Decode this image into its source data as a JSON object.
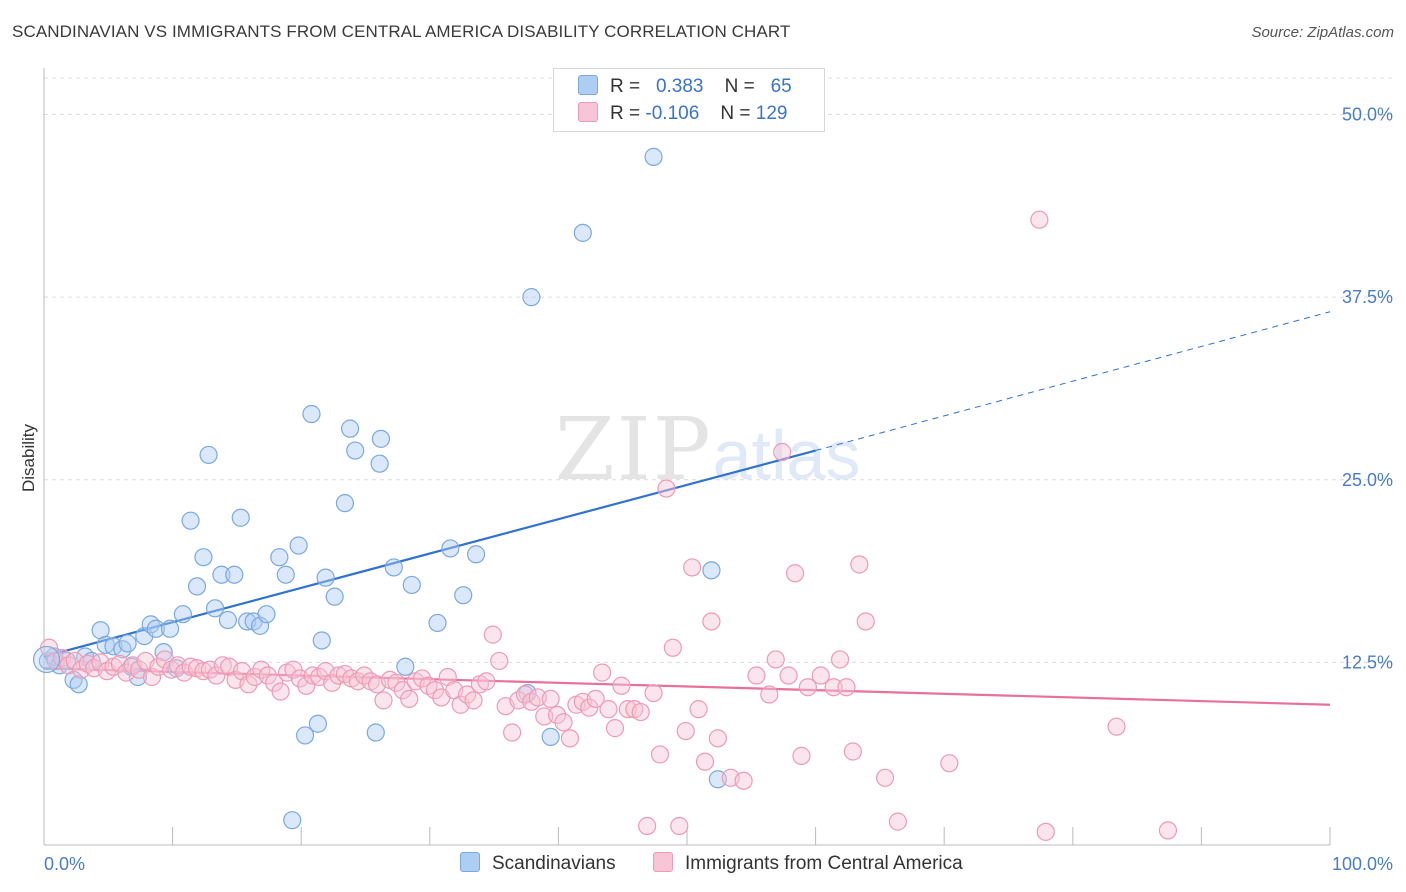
{
  "title": "SCANDINAVIAN VS IMMIGRANTS FROM CENTRAL AMERICA DISABILITY CORRELATION CHART",
  "source": "Source: ZipAtlas.com",
  "watermark": {
    "zip": "ZIP",
    "atlas": "atlas"
  },
  "legend": {
    "rows": [
      {
        "r_label": "R =",
        "r_value": "0.383",
        "n_label": "N =",
        "n_value": "65",
        "color": "#aecdf3",
        "border": "#7aa9e0"
      },
      {
        "r_label": "R =",
        "r_value": "-0.106",
        "n_label": "N =",
        "n_value": "129",
        "color": "#f7c5d5",
        "border": "#ee9ab5"
      }
    ]
  },
  "bottom_legend": [
    {
      "label": "Scandinavians",
      "color": "#aecdf3",
      "border": "#7aa9e0"
    },
    {
      "label": "Immigrants from Central America",
      "color": "#f7c5d5",
      "border": "#ee9ab5"
    }
  ],
  "chart_data": {
    "type": "scatter",
    "title": "SCANDINAVIAN VS IMMIGRANTS FROM CENTRAL AMERICA DISABILITY CORRELATION CHART",
    "xlabel": "",
    "ylabel": "Disability",
    "xlim": [
      0,
      100
    ],
    "ylim": [
      0,
      52.5
    ],
    "x_tick_labels": [
      "0.0%",
      "100.0%"
    ],
    "y_ticks": [
      12.5,
      25.0,
      37.5,
      50.0
    ],
    "y_tick_labels": [
      "12.5%",
      "25.0%",
      "37.5%",
      "50.0%"
    ],
    "grid": true,
    "series": [
      {
        "name": "Scandinavians",
        "color": "#7aa9e0",
        "fill": "rgba(174,205,243,0.45)",
        "trend": {
          "x0": 0,
          "y0": 12.9,
          "x1": 60,
          "y1": 27.0,
          "dash_to_x": 100,
          "dash_to_y": 36.5,
          "color": "#2f72d2"
        },
        "points": [
          [
            0.3,
            12.6
          ],
          [
            0.8,
            12.9
          ],
          [
            1.2,
            12.3
          ],
          [
            1.8,
            12.6
          ],
          [
            2.3,
            11.3
          ],
          [
            2.7,
            11.0
          ],
          [
            3.2,
            12.9
          ],
          [
            3.7,
            12.6
          ],
          [
            4.4,
            14.7
          ],
          [
            4.8,
            13.7
          ],
          [
            5.4,
            13.6
          ],
          [
            6.1,
            13.4
          ],
          [
            6.5,
            13.8
          ],
          [
            6.8,
            12.2
          ],
          [
            7.3,
            11.5
          ],
          [
            7.8,
            14.3
          ],
          [
            8.3,
            15.1
          ],
          [
            8.7,
            14.8
          ],
          [
            9.3,
            13.2
          ],
          [
            9.8,
            14.8
          ],
          [
            10.3,
            12.1
          ],
          [
            10.8,
            15.8
          ],
          [
            11.4,
            22.2
          ],
          [
            11.9,
            17.7
          ],
          [
            12.4,
            19.7
          ],
          [
            12.8,
            26.7
          ],
          [
            13.3,
            16.2
          ],
          [
            13.8,
            18.5
          ],
          [
            14.3,
            15.4
          ],
          [
            14.8,
            18.5
          ],
          [
            15.3,
            22.4
          ],
          [
            15.8,
            15.3
          ],
          [
            16.3,
            15.3
          ],
          [
            16.8,
            15.0
          ],
          [
            17.3,
            15.8
          ],
          [
            18.3,
            19.7
          ],
          [
            18.8,
            18.5
          ],
          [
            19.3,
            1.7
          ],
          [
            19.8,
            20.5
          ],
          [
            20.3,
            7.5
          ],
          [
            20.8,
            29.5
          ],
          [
            21.3,
            8.3
          ],
          [
            21.6,
            14.0
          ],
          [
            21.9,
            18.3
          ],
          [
            22.6,
            17.0
          ],
          [
            23.4,
            23.4
          ],
          [
            23.8,
            28.5
          ],
          [
            24.2,
            27.0
          ],
          [
            26.2,
            27.8
          ],
          [
            25.8,
            7.7
          ],
          [
            26.1,
            26.1
          ],
          [
            27.2,
            19.0
          ],
          [
            28.1,
            12.2
          ],
          [
            28.6,
            17.8
          ],
          [
            30.6,
            15.2
          ],
          [
            31.6,
            20.3
          ],
          [
            32.6,
            17.1
          ],
          [
            33.6,
            19.9
          ],
          [
            37.6,
            10.4
          ],
          [
            37.9,
            37.5
          ],
          [
            39.4,
            7.4
          ],
          [
            41.9,
            41.9
          ],
          [
            47.4,
            47.1
          ],
          [
            51.9,
            18.8
          ],
          [
            52.4,
            4.5
          ]
        ]
      },
      {
        "name": "Immigrants from Central America",
        "color": "#ee9ab5",
        "fill": "rgba(247,197,213,0.45)",
        "trend": {
          "x0": 0,
          "y0": 12.1,
          "x1": 100,
          "y1": 9.6,
          "color": "#e8709b"
        },
        "points": [
          [
            0.4,
            13.5
          ],
          [
            0.9,
            12.6
          ],
          [
            1.4,
            12.8
          ],
          [
            1.9,
            12.3
          ],
          [
            2.4,
            12.6
          ],
          [
            2.9,
            12.0
          ],
          [
            3.4,
            12.4
          ],
          [
            3.9,
            12.1
          ],
          [
            4.4,
            12.5
          ],
          [
            4.9,
            11.9
          ],
          [
            5.4,
            12.2
          ],
          [
            5.9,
            12.4
          ],
          [
            6.4,
            11.8
          ],
          [
            6.9,
            12.3
          ],
          [
            7.4,
            12.0
          ],
          [
            7.9,
            12.6
          ],
          [
            8.4,
            11.5
          ],
          [
            8.9,
            12.2
          ],
          [
            9.4,
            12.7
          ],
          [
            9.9,
            12.0
          ],
          [
            10.4,
            12.3
          ],
          [
            10.9,
            11.8
          ],
          [
            11.4,
            12.2
          ],
          [
            11.9,
            12.1
          ],
          [
            12.4,
            11.9
          ],
          [
            12.9,
            12.0
          ],
          [
            13.4,
            11.6
          ],
          [
            13.9,
            12.3
          ],
          [
            14.4,
            12.2
          ],
          [
            14.9,
            11.3
          ],
          [
            15.4,
            11.9
          ],
          [
            15.9,
            11.0
          ],
          [
            16.4,
            11.5
          ],
          [
            16.9,
            12.0
          ],
          [
            17.4,
            11.6
          ],
          [
            17.9,
            11.1
          ],
          [
            18.4,
            10.5
          ],
          [
            18.9,
            11.8
          ],
          [
            19.4,
            12.0
          ],
          [
            19.9,
            11.4
          ],
          [
            20.4,
            10.9
          ],
          [
            20.9,
            11.6
          ],
          [
            21.4,
            11.5
          ],
          [
            21.9,
            11.9
          ],
          [
            22.4,
            11.1
          ],
          [
            22.9,
            11.6
          ],
          [
            23.4,
            11.7
          ],
          [
            23.9,
            11.4
          ],
          [
            24.4,
            11.2
          ],
          [
            24.9,
            11.6
          ],
          [
            25.4,
            11.2
          ],
          [
            25.9,
            11.0
          ],
          [
            26.4,
            9.9
          ],
          [
            26.9,
            11.3
          ],
          [
            27.4,
            11.1
          ],
          [
            27.9,
            10.6
          ],
          [
            28.4,
            10.0
          ],
          [
            28.9,
            11.2
          ],
          [
            29.4,
            11.4
          ],
          [
            29.9,
            10.9
          ],
          [
            30.4,
            10.6
          ],
          [
            30.9,
            10.1
          ],
          [
            31.4,
            11.5
          ],
          [
            31.9,
            10.6
          ],
          [
            32.4,
            9.6
          ],
          [
            32.9,
            10.3
          ],
          [
            33.4,
            9.9
          ],
          [
            33.9,
            11.0
          ],
          [
            34.4,
            11.2
          ],
          [
            34.9,
            14.4
          ],
          [
            35.4,
            12.6
          ],
          [
            35.9,
            9.5
          ],
          [
            36.4,
            7.7
          ],
          [
            36.9,
            9.9
          ],
          [
            37.4,
            10.3
          ],
          [
            37.9,
            9.8
          ],
          [
            38.4,
            10.1
          ],
          [
            38.9,
            8.8
          ],
          [
            39.4,
            10.0
          ],
          [
            39.9,
            8.9
          ],
          [
            40.4,
            8.4
          ],
          [
            40.9,
            7.3
          ],
          [
            41.4,
            9.6
          ],
          [
            41.9,
            9.8
          ],
          [
            42.4,
            9.4
          ],
          [
            42.9,
            10.0
          ],
          [
            43.4,
            11.8
          ],
          [
            43.9,
            9.3
          ],
          [
            44.4,
            8.0
          ],
          [
            44.9,
            10.9
          ],
          [
            45.4,
            9.3
          ],
          [
            45.9,
            9.3
          ],
          [
            46.4,
            9.1
          ],
          [
            46.9,
            1.3
          ],
          [
            47.4,
            10.4
          ],
          [
            47.9,
            6.2
          ],
          [
            48.4,
            24.4
          ],
          [
            48.9,
            13.5
          ],
          [
            49.4,
            1.3
          ],
          [
            49.9,
            7.8
          ],
          [
            50.4,
            19.0
          ],
          [
            50.9,
            9.3
          ],
          [
            51.4,
            5.7
          ],
          [
            51.9,
            15.3
          ],
          [
            52.4,
            7.3
          ],
          [
            53.4,
            4.6
          ],
          [
            54.4,
            4.4
          ],
          [
            55.4,
            11.6
          ],
          [
            56.4,
            10.3
          ],
          [
            56.9,
            12.7
          ],
          [
            57.4,
            26.9
          ],
          [
            57.9,
            11.6
          ],
          [
            58.4,
            18.6
          ],
          [
            58.9,
            6.1
          ],
          [
            59.4,
            10.8
          ],
          [
            60.4,
            11.6
          ],
          [
            61.4,
            10.8
          ],
          [
            61.9,
            12.7
          ],
          [
            62.4,
            10.8
          ],
          [
            62.9,
            6.4
          ],
          [
            63.4,
            19.2
          ],
          [
            63.9,
            15.3
          ],
          [
            65.4,
            4.6
          ],
          [
            66.4,
            1.6
          ],
          [
            70.4,
            5.6
          ],
          [
            77.4,
            42.8
          ],
          [
            77.9,
            0.9
          ],
          [
            83.4,
            8.1
          ],
          [
            87.4,
            1.0
          ]
        ]
      }
    ]
  }
}
